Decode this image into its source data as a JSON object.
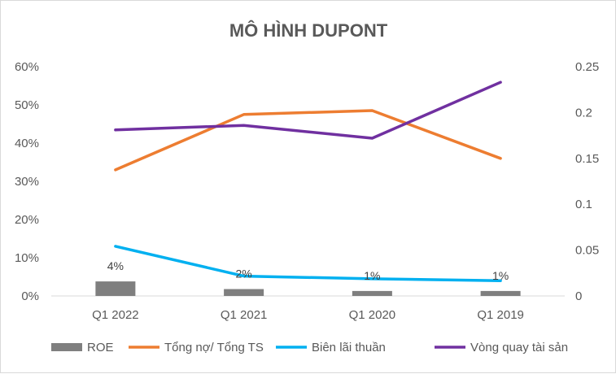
{
  "chart_data": {
    "type": "bar",
    "title": "MÔ HÌNH DUPONT",
    "categories": [
      "Q1 2022",
      "Q1 2021",
      "Q1 2020",
      "Q1 2019"
    ],
    "left_axis": {
      "ylim": [
        0,
        0.6
      ],
      "ticks": [
        0,
        0.1,
        0.2,
        0.3,
        0.4,
        0.5,
        0.6
      ],
      "tick_labels": [
        "0%",
        "10%",
        "20%",
        "30%",
        "40%",
        "50%",
        "60%"
      ]
    },
    "right_axis": {
      "ylim": [
        0,
        0.25
      ],
      "ticks": [
        0,
        0.05,
        0.1,
        0.15,
        0.2,
        0.25
      ],
      "tick_labels": [
        "0",
        "0.05",
        "0.1",
        "0.15",
        "0.2",
        "0.25"
      ]
    },
    "grid": false,
    "legend_position": "bottom",
    "series": [
      {
        "name": "ROE",
        "type": "bar",
        "axis": "left",
        "color": "#7f7f7f",
        "values": [
          0.038,
          0.018,
          0.013,
          0.013
        ],
        "data_labels": [
          "4%",
          "2%",
          "1%",
          "1%"
        ]
      },
      {
        "name": "Tổng nợ/ Tổng TS",
        "type": "line",
        "axis": "left",
        "color": "#ed7d31",
        "values": [
          0.33,
          0.475,
          0.485,
          0.36
        ]
      },
      {
        "name": "Biên lãi thuần",
        "type": "line",
        "axis": "left",
        "color": "#00b0f0",
        "values": [
          0.13,
          0.052,
          0.045,
          0.04
        ]
      },
      {
        "name": "Vòng quay tài sản",
        "type": "line",
        "axis": "right",
        "color": "#7030a0",
        "values": [
          0.181,
          0.186,
          0.172,
          0.233
        ]
      }
    ]
  }
}
